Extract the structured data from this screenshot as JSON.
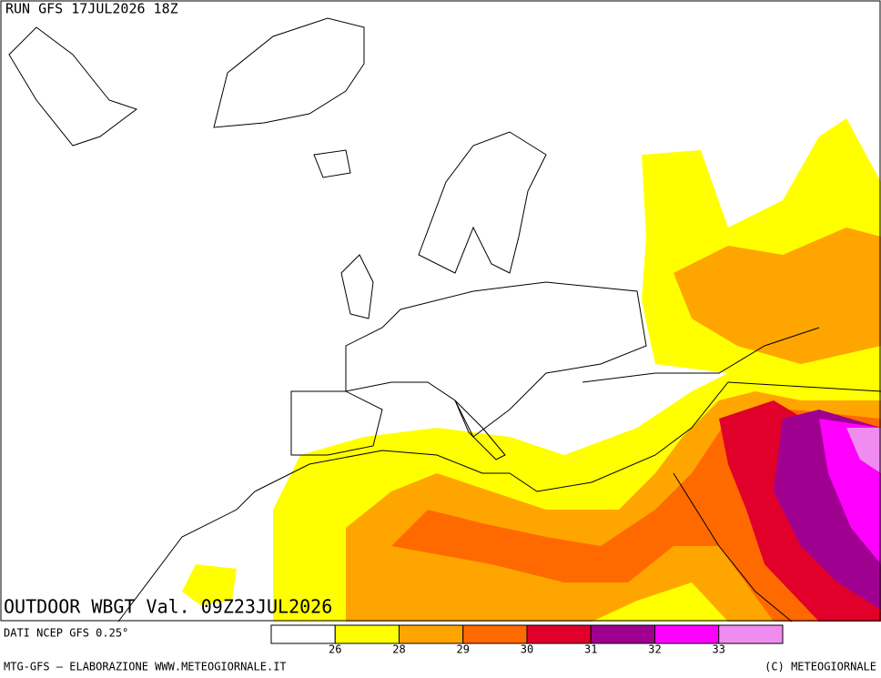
{
  "header": {
    "run": "RUN GFS 17JUL2026 18Z"
  },
  "map": {
    "title": "OUTDOOR WBGT Val. 09Z23JUL2026"
  },
  "legend": {
    "source": "DATI NCEP GFS 0.25°",
    "colors": [
      "#ffffff",
      "#ffff00",
      "#ffa500",
      "#ff6a00",
      "#e0002a",
      "#a00090",
      "#ff00ff",
      "#f08cf0"
    ],
    "thresholds": [
      26,
      28,
      29,
      30,
      31,
      32,
      33
    ]
  },
  "footer": {
    "left": "MTG-GFS — ELABORAZIONE WWW.METEOGIORNALE.IT",
    "right": "(C) METEOGIORNALE"
  }
}
